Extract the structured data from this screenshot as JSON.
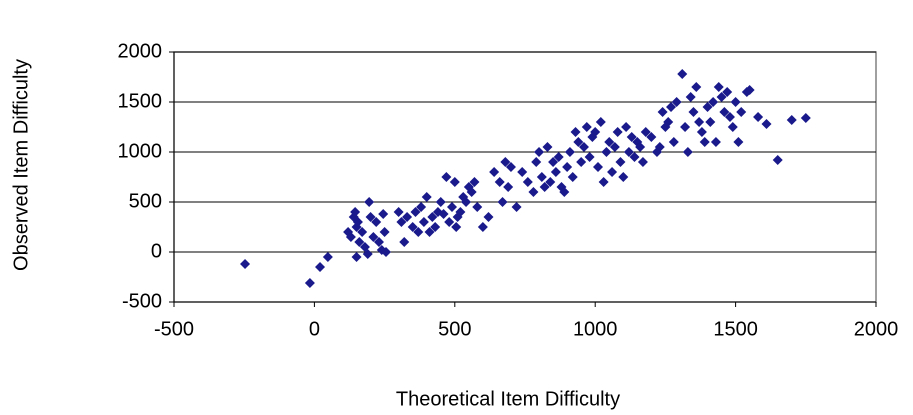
{
  "chart_data": {
    "type": "scatter",
    "x_label": "Theoretical Item Difficulty",
    "y_label": "Observed Item Difficulty",
    "color": "#1a1a8c",
    "x": [
      -247,
      -16,
      20,
      48,
      120,
      130,
      140,
      145,
      150,
      155,
      160,
      150,
      170,
      180,
      190,
      195,
      200,
      210,
      220,
      230,
      240,
      245,
      250,
      255,
      300,
      310,
      320,
      330,
      350,
      360,
      370,
      380,
      390,
      400,
      410,
      420,
      430,
      440,
      450,
      460,
      470,
      480,
      490,
      500,
      505,
      510,
      520,
      530,
      540,
      550,
      560,
      570,
      580,
      600,
      620,
      640,
      660,
      670,
      680,
      690,
      700,
      720,
      740,
      760,
      780,
      790,
      800,
      810,
      820,
      830,
      840,
      850,
      860,
      870,
      880,
      890,
      900,
      910,
      920,
      930,
      940,
      950,
      960,
      970,
      980,
      990,
      1000,
      1010,
      1020,
      1030,
      1040,
      1050,
      1060,
      1070,
      1080,
      1090,
      1100,
      1110,
      1120,
      1130,
      1140,
      1150,
      1160,
      1170,
      1180,
      1200,
      1220,
      1230,
      1240,
      1250,
      1260,
      1270,
      1280,
      1290,
      1310,
      1320,
      1330,
      1340,
      1350,
      1360,
      1370,
      1380,
      1390,
      1400,
      1410,
      1420,
      1430,
      1440,
      1450,
      1460,
      1470,
      1480,
      1490,
      1500,
      1510,
      1520,
      1540,
      1550,
      1580,
      1610,
      1650,
      1700,
      1750
    ],
    "values": [
      -120,
      -310,
      -150,
      -50,
      200,
      150,
      350,
      400,
      250,
      300,
      100,
      -50,
      200,
      50,
      -20,
      500,
      350,
      150,
      300,
      100,
      20,
      380,
      200,
      0,
      400,
      300,
      100,
      350,
      250,
      400,
      200,
      450,
      300,
      550,
      200,
      350,
      250,
      400,
      500,
      380,
      750,
      300,
      450,
      700,
      250,
      350,
      400,
      550,
      500,
      650,
      600,
      700,
      450,
      250,
      350,
      800,
      700,
      500,
      900,
      650,
      850,
      450,
      800,
      700,
      600,
      900,
      1000,
      750,
      650,
      1050,
      700,
      900,
      800,
      950,
      650,
      600,
      850,
      1000,
      750,
      1200,
      1100,
      900,
      1050,
      1250,
      950,
      1150,
      1200,
      850,
      1300,
      700,
      1000,
      1100,
      800,
      1050,
      1200,
      900,
      750,
      1250,
      1000,
      1150,
      950,
      1100,
      1050,
      900,
      1200,
      1150,
      1000,
      1050,
      1400,
      1250,
      1300,
      1450,
      1100,
      1500,
      1780,
      1250,
      1000,
      1550,
      1400,
      1650,
      1300,
      1200,
      1100,
      1450,
      1300,
      1500,
      1100,
      1650,
      1550,
      1400,
      1600,
      1350,
      1250,
      1500,
      1100,
      1400,
      1600,
      1620,
      1350,
      1280,
      920,
      1320,
      1340
    ],
    "xlim": [
      -500,
      2000
    ],
    "xticks": [
      -500,
      0,
      500,
      1000,
      1500,
      2000
    ],
    "ylim": [
      -500,
      2000
    ],
    "yticks": [
      -500,
      0,
      500,
      1000,
      1500,
      2000
    ],
    "grid": true
  }
}
